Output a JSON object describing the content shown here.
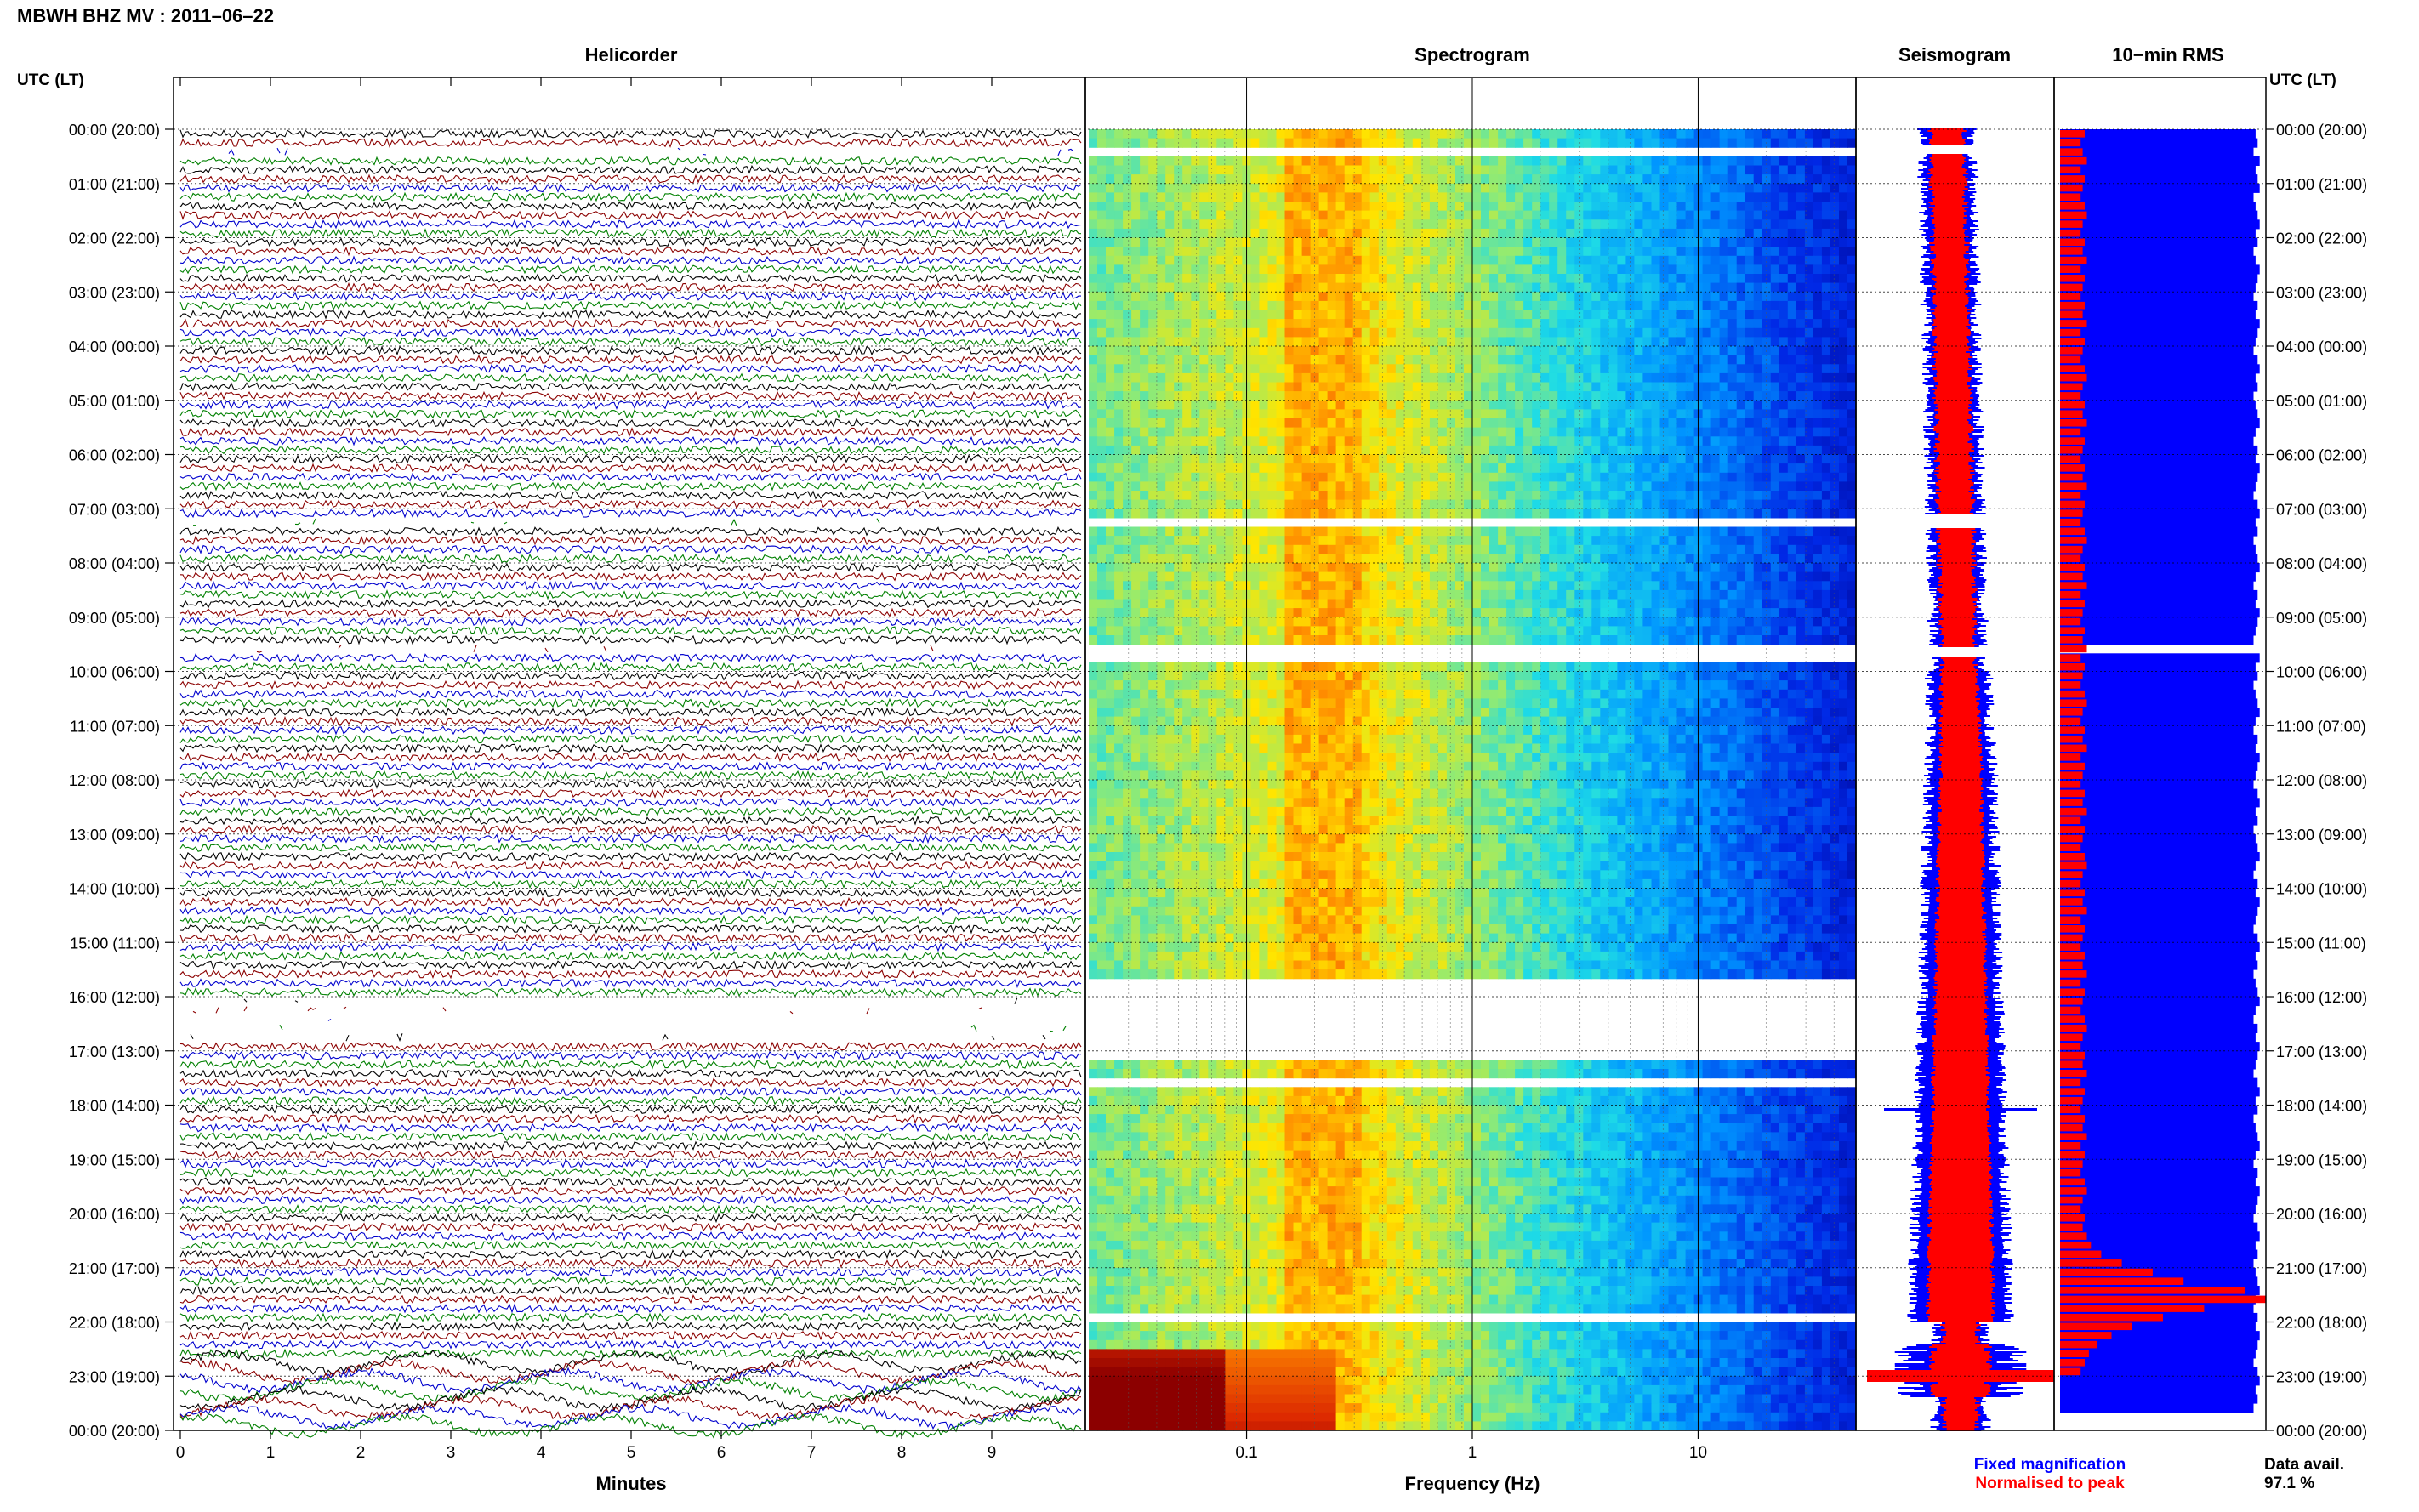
{
  "station_title": "MBWH BHZ MV : 2011–06–22",
  "panels": {
    "helicorder": "Helicorder",
    "spectrogram": "Spectrogram",
    "seismogram": "Seismogram",
    "rms": "10−min RMS"
  },
  "axis": {
    "time_header_left": "UTC (LT)",
    "time_header_right": "UTC (LT)",
    "time_labels": [
      "00:00 (20:00)",
      "01:00 (21:00)",
      "02:00 (22:00)",
      "03:00 (23:00)",
      "04:00 (00:00)",
      "05:00 (01:00)",
      "06:00 (02:00)",
      "07:00 (03:00)",
      "08:00 (04:00)",
      "09:00 (05:00)",
      "10:00 (06:00)",
      "11:00 (07:00)",
      "12:00 (08:00)",
      "13:00 (09:00)",
      "14:00 (10:00)",
      "15:00 (11:00)",
      "16:00 (12:00)",
      "17:00 (13:00)",
      "18:00 (14:00)",
      "19:00 (15:00)",
      "20:00 (16:00)",
      "21:00 (17:00)",
      "22:00 (18:00)",
      "23:00 (19:00)",
      "00:00 (20:00)"
    ],
    "minutes_label": "Minutes",
    "minutes_ticks": [
      "0",
      "1",
      "2",
      "3",
      "4",
      "5",
      "6",
      "7",
      "8",
      "9"
    ],
    "frequency_label": "Frequency (Hz)",
    "frequency_ticks": [
      "0.1",
      "1",
      "10"
    ]
  },
  "legend": {
    "fixed": "Fixed magnification",
    "normalised": "Normalised to peak",
    "data_avail_label": "Data avail.",
    "data_avail_value": "97.1 %"
  },
  "colors": {
    "trace_cycle": [
      "#000000",
      "#8b0000",
      "#0000cd",
      "#008000"
    ],
    "fixed": "#0000ff",
    "normalised": "#ff0000"
  },
  "chart_data": {
    "type": "heatmap",
    "date": "2011-06-22",
    "station": "MBWH BHZ MV",
    "hours_utc": 24,
    "helicorder": {
      "minutes_per_line": 10,
      "x_range_minutes": [
        0,
        10
      ],
      "gaps_utc_hours": [
        [
          0.25,
          0.35
        ],
        [
          7.05,
          7.2
        ],
        [
          9.5,
          9.55
        ],
        [
          16.0,
          16.75
        ]
      ],
      "events": [
        {
          "time_utc_hours": 11.35,
          "minute": 6.0
        },
        {
          "time_utc_hours": 17.95,
          "minute": 3.8
        },
        {
          "time_utc_hours": 11.2,
          "minute": 4.1
        }
      ],
      "high_amplitude_period_utc_hours": [
        22.6,
        24.0
      ]
    },
    "spectrogram": {
      "x_scale": "log",
      "x_range_hz": [
        0.02,
        50
      ],
      "spectral_peak_hz": [
        0.15,
        0.3
      ],
      "strong_low_freq_energy_utc_hours": [
        22.5,
        24.0
      ],
      "gaps_utc_hours": [
        [
          0.3,
          0.45
        ],
        [
          7.1,
          7.35
        ],
        [
          9.55,
          9.75
        ],
        [
          15.7,
          17.2
        ],
        [
          17.5,
          17.6
        ],
        [
          21.9,
          22.05
        ]
      ]
    },
    "rms_10min_fixed_fraction": [
      0.95,
      0.96,
      0.94,
      0.97,
      0.95,
      0.96,
      0.97,
      0.94,
      0.95,
      0.96,
      0.97,
      0.95,
      0.96,
      0.94,
      0.95,
      0.97,
      0.96,
      0.95,
      0.94,
      0.96,
      0.95,
      0.97,
      0.96,
      0.95,
      0.94,
      0.96,
      0.97,
      0.95,
      0.96,
      0.94,
      0.95,
      0.96,
      0.97,
      0.95,
      0.94,
      0.96,
      0.95,
      0.97,
      0.96,
      0.95,
      0.94,
      0.96,
      0.97,
      0.95,
      0.96,
      0.94,
      0.95,
      0.96,
      0.97,
      0.95,
      0.94,
      0.96,
      0.95,
      0.97,
      0.96,
      0.95,
      0.94,
      0.96,
      0.97,
      0.95,
      0.96,
      0.94,
      0.95,
      0.96,
      0.97,
      0.95,
      0.94,
      0.96,
      0.95,
      0.97,
      0.96,
      0.95,
      0.94,
      0.96,
      0.97,
      0.95,
      0.96,
      0.94,
      0.95,
      0.96,
      0.97,
      0.95,
      0.94,
      0.96,
      0.95,
      0.97,
      0.96,
      0.95,
      0.94,
      0.96,
      0.97,
      0.95,
      0.96,
      0.94,
      0.95,
      0.96,
      0.97,
      0.95,
      0.94,
      0.96,
      0.95,
      0.97,
      0.96,
      0.95,
      0.94,
      0.96,
      0.97,
      0.95,
      0.96,
      0.94,
      0.95,
      0.96,
      0.97,
      0.95,
      0.94,
      0.96,
      0.95,
      0.97,
      0.96,
      0.95,
      0.94,
      0.96,
      0.97,
      0.95,
      0.96,
      0.94,
      0.95,
      0.96,
      0.97,
      0.95,
      0.94,
      0.96,
      0.95,
      0.97,
      0.96,
      0.95,
      0.94,
      0.96,
      0.97,
      0.95,
      0.96,
      0.94
    ],
    "rms_10min_normalised_fraction": [
      0.12,
      0.1,
      0.11,
      0.13,
      0.1,
      0.12,
      0.11,
      0.1,
      0.12,
      0.13,
      0.11,
      0.1,
      0.12,
      0.11,
      0.13,
      0.1,
      0.12,
      0.11,
      0.1,
      0.12,
      0.11,
      0.13,
      0.1,
      0.12,
      0.11,
      0.1,
      0.12,
      0.13,
      0.11,
      0.1,
      0.12,
      0.11,
      0.13,
      0.1,
      0.12,
      0.11,
      0.1,
      0.12,
      0.11,
      0.13,
      0.1,
      0.12,
      0.11,
      0.1,
      0.12,
      0.13,
      0.11,
      0.1,
      0.12,
      0.11,
      0.13,
      0.1,
      0.12,
      0.11,
      0.1,
      0.12,
      0.11,
      0.13,
      0.1,
      0.12,
      0.11,
      0.1,
      0.12,
      0.13,
      0.11,
      0.1,
      0.12,
      0.11,
      0.13,
      0.1,
      0.12,
      0.11,
      0.1,
      0.12,
      0.11,
      0.13,
      0.1,
      0.12,
      0.11,
      0.1,
      0.12,
      0.13,
      0.11,
      0.1,
      0.12,
      0.11,
      0.13,
      0.1,
      0.12,
      0.11,
      0.1,
      0.12,
      0.11,
      0.13,
      0.1,
      0.12,
      0.11,
      0.1,
      0.12,
      0.13,
      0.11,
      0.1,
      0.12,
      0.11,
      0.13,
      0.1,
      0.12,
      0.11,
      0.1,
      0.12,
      0.11,
      0.13,
      0.1,
      0.12,
      0.11,
      0.1,
      0.12,
      0.13,
      0.11,
      0.1,
      0.12,
      0.11,
      0.13,
      0.15,
      0.2,
      0.3,
      0.45,
      0.6,
      0.9,
      1.0,
      0.7,
      0.5,
      0.35,
      0.25,
      0.18,
      0.14,
      0.12,
      0.1
    ],
    "data_availability_percent": 97.1
  }
}
